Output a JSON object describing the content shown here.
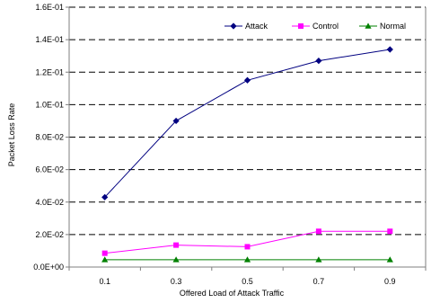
{
  "chart_data": {
    "type": "line",
    "title": "",
    "xlabel": "Offered Load of Attack Traffic",
    "ylabel": "Packet Loss Rate",
    "categories": [
      "0.1",
      "0.3",
      "0.5",
      "0.7",
      "0.9"
    ],
    "x": [
      0.1,
      0.3,
      0.5,
      0.7,
      0.9
    ],
    "ylim": [
      0,
      0.16
    ],
    "yticks": [
      0,
      0.02,
      0.04,
      0.06,
      0.08,
      0.1,
      0.12,
      0.14,
      0.16
    ],
    "ytick_labels": [
      "0.0E+00",
      "2.0E-02",
      "4.0E-02",
      "6.0E-02",
      "8.0E-02",
      "1.0E-01",
      "1.2E-01",
      "1.4E-01",
      "1.6E-01"
    ],
    "grid": "horizontal dashed",
    "legend_position": "top-right",
    "series": [
      {
        "name": "Attack",
        "color": "#000080",
        "marker": "diamond",
        "values": [
          0.043,
          0.09,
          0.115,
          0.127,
          0.134
        ]
      },
      {
        "name": "Control",
        "color": "#FF00FF",
        "marker": "square",
        "values": [
          0.0085,
          0.0135,
          0.0125,
          0.022,
          0.022
        ]
      },
      {
        "name": "Normal",
        "color": "#008000",
        "marker": "triangle",
        "values": [
          0.0045,
          0.0045,
          0.0045,
          0.0045,
          0.0045
        ]
      }
    ]
  }
}
